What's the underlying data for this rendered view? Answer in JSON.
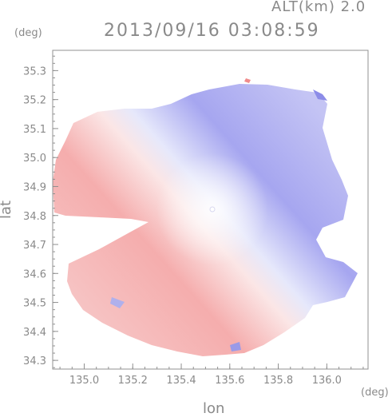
{
  "header": {
    "altitude_label": "ALT(km) 2.0",
    "datetime": "2013/09/16 03:08:59"
  },
  "chart_data": {
    "type": "heatmap",
    "title": "2013/09/16 03:08:59",
    "subtitle": "ALT(km) 2.0",
    "xlabel": "lon",
    "ylabel": "lat",
    "x_unit": "(deg)",
    "y_unit": "(deg)",
    "xlim": [
      134.87,
      136.17
    ],
    "ylim": [
      34.27,
      35.37
    ],
    "x_ticks": [
      135.0,
      135.2,
      135.4,
      135.6,
      135.8,
      136.0
    ],
    "x_tick_labels": [
      "135.0",
      "135.2",
      "135.4",
      "135.6",
      "135.8",
      "136.0"
    ],
    "y_ticks": [
      34.3,
      34.4,
      34.5,
      34.6,
      34.7,
      34.8,
      34.9,
      35.0,
      35.1,
      35.2,
      35.3
    ],
    "y_tick_labels": [
      "34.3",
      "34.4",
      "34.5",
      "34.6",
      "34.7",
      "34.8",
      "34.9",
      "35.0",
      "35.1",
      "35.2",
      "35.3"
    ],
    "grid": false,
    "radar_center": {
      "lon": 135.52,
      "lat": 34.82
    },
    "colormap": {
      "negative": "#8c8cf0",
      "zero": "#ffffff",
      "positive": "#f08c8c"
    },
    "colors": {
      "axis": "#909090",
      "text": "#8a8a8a"
    }
  }
}
